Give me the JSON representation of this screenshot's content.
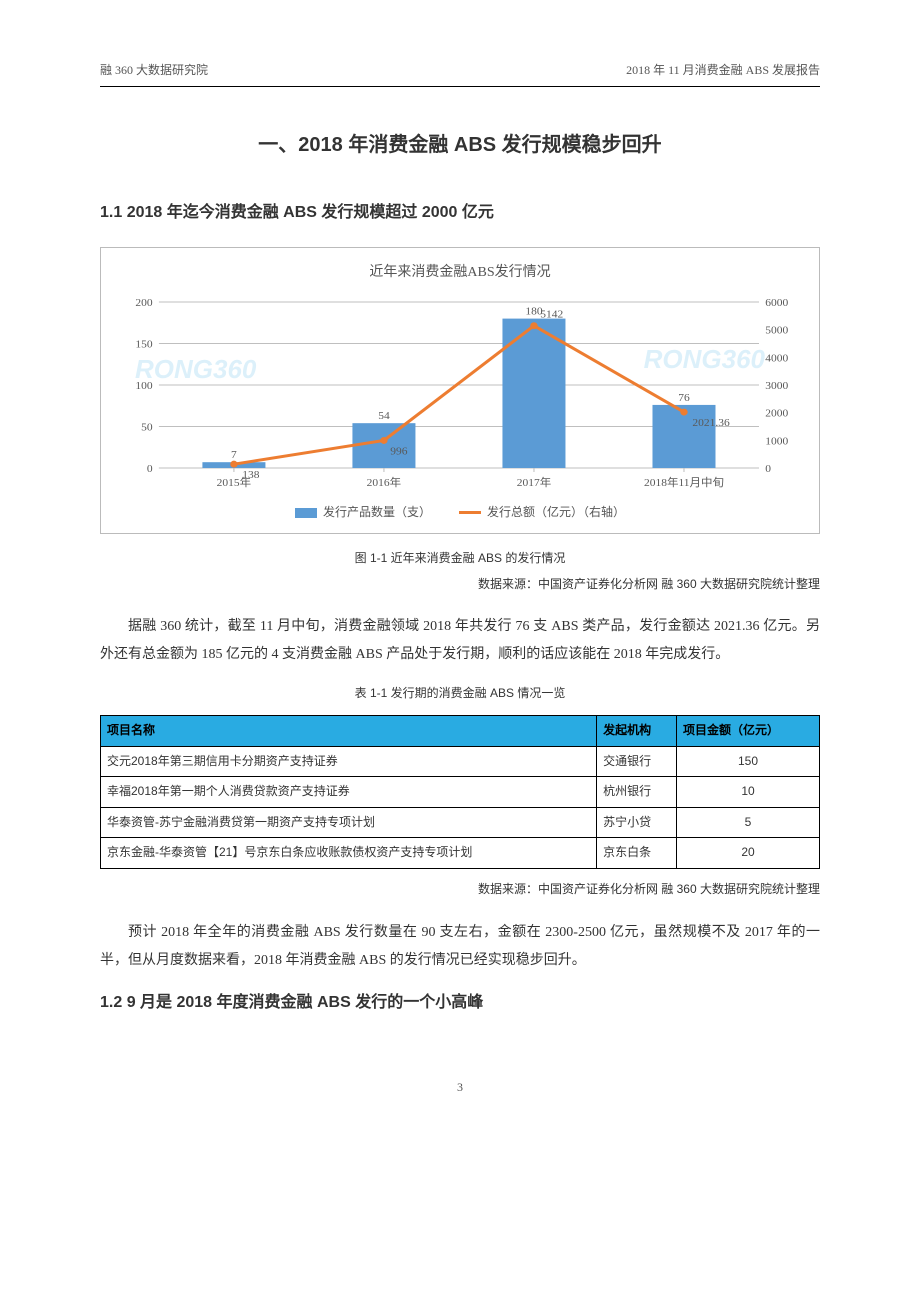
{
  "header": {
    "left": "融 360 大数据研究院",
    "right": "2018 年 11 月消费金融 ABS 发展报告"
  },
  "main_title": "一、2018 年消费金融 ABS 发行规模稳步回升",
  "section_1_1_title": "1.1 2018 年迄今消费金融 ABS 发行规模超过 2000 亿元",
  "chart": {
    "title": "近年来消费金融ABS发行情况",
    "categories": [
      "2015年",
      "2016年",
      "2017年",
      "2018年11月中旬"
    ],
    "bar_series_name": "发行产品数量（支）",
    "bar_values": [
      7,
      54,
      180,
      76
    ],
    "line_series_name": "发行总额（亿元）（右轴）",
    "line_values": [
      138,
      996,
      5142,
      2021.36
    ],
    "line_labels": [
      "138",
      "996",
      "5142",
      "2021.36"
    ],
    "left_ylim": [
      0,
      200
    ],
    "left_ytick_step": 50,
    "right_ylim": [
      0,
      6000
    ],
    "right_ytick_step": 1000,
    "bar_color": "#5b9bd5",
    "line_color": "#ed7d31",
    "axis_color": "#bfbfbf",
    "label_color": "#595959",
    "watermark_text": "RONG360",
    "watermark_color": "rgba(60,170,230,0.18)"
  },
  "fig_caption": "图 1-1  近年来消费金融 ABS 的发行情况",
  "data_source_1": "数据来源：中国资产证券化分析网  融 360 大数据研究院统计整理",
  "para_1": "据融 360 统计，截至 11 月中旬，消费金融领域 2018 年共发行 76 支 ABS 类产品，发行金额达 2021.36 亿元。另外还有总金额为 185 亿元的 4 支消费金融 ABS 产品处于发行期，顺利的话应该能在 2018 年完成发行。",
  "table_caption": "表 1-1  发行期的消费金融 ABS 情况一览",
  "table": {
    "header_bg": "#29abe2",
    "columns": [
      "项目名称",
      "发起机构",
      "项目金额（亿元）"
    ],
    "rows": [
      [
        "交元2018年第三期信用卡分期资产支持证券",
        "交通银行",
        "150"
      ],
      [
        "幸福2018年第一期个人消费贷款资产支持证券",
        "杭州银行",
        "10"
      ],
      [
        "华泰资管-苏宁金融消费贷第一期资产支持专项计划",
        "苏宁小贷",
        "5"
      ],
      [
        "京东金融-华泰资管【21】号京东白条应收账款债权资产支持专项计划",
        "京东白条",
        "20"
      ]
    ]
  },
  "data_source_2": "数据来源：中国资产证券化分析网  融 360 大数据研究院统计整理",
  "para_2": "预计 2018 年全年的消费金融 ABS 发行数量在 90 支左右，金额在 2300-2500 亿元，虽然规模不及 2017 年的一半，但从月度数据来看，2018 年消费金融 ABS 的发行情况已经实现稳步回升。",
  "section_1_2_title": "1.2 9 月是 2018 年度消费金融 ABS 发行的一个小高峰",
  "page_number": "3"
}
